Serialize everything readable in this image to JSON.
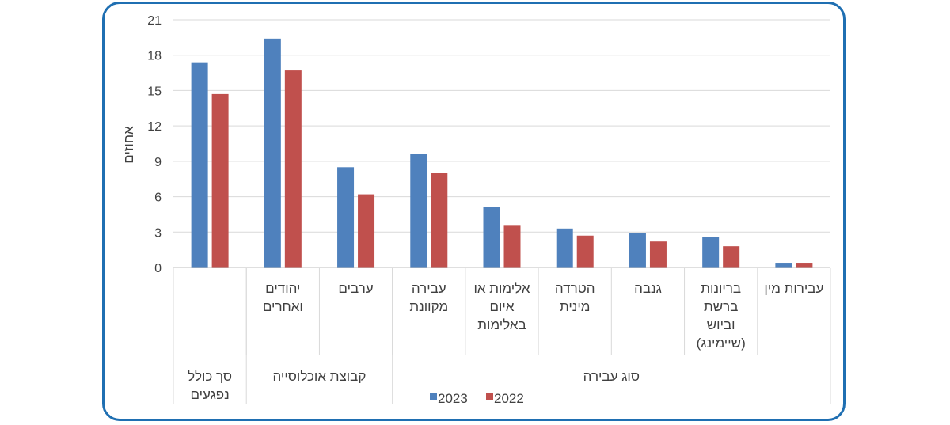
{
  "chart_data": {
    "type": "bar",
    "ylabel": "אחוזים",
    "ylim": [
      0,
      21
    ],
    "yticks": [
      "0",
      "3",
      "6",
      "9",
      "12",
      "15",
      "18",
      "21"
    ],
    "grid": true,
    "legend_position": "bottom",
    "categories": [
      [
        "",
        ""
      ],
      [
        "יהודים",
        "ואחרים"
      ],
      [
        "ערבים"
      ],
      [
        "עבירה",
        "מקוונת"
      ],
      [
        "אלימות או",
        "איום",
        "באלימות"
      ],
      [
        "הטרדה",
        "מינית"
      ],
      [
        "גנבה"
      ],
      [
        "בריונות",
        "ברשת",
        "וביוש",
        "(שיימינג)"
      ],
      [
        "עבירות מין"
      ]
    ],
    "groups": [
      {
        "label": [
          "סך כולל",
          "נפגעים"
        ],
        "span": 1
      },
      {
        "label": [
          "קבוצת אוכלוסייה"
        ],
        "span": 2
      },
      {
        "label": [
          "סוג עבירה"
        ],
        "span": 6
      }
    ],
    "series": [
      {
        "name": "2023",
        "color": "#4f81bd",
        "values": [
          17.4,
          19.4,
          8.5,
          9.6,
          5.1,
          3.3,
          2.9,
          2.6,
          0.4
        ]
      },
      {
        "name": "2022",
        "color": "#c0504d",
        "values": [
          14.7,
          16.7,
          6.2,
          8.0,
          3.6,
          2.7,
          2.2,
          1.8,
          0.4
        ]
      }
    ]
  }
}
